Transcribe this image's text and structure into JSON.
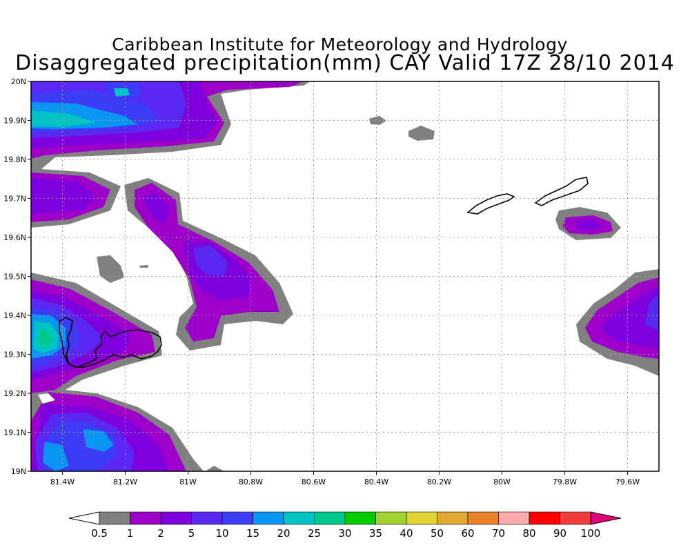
{
  "title": {
    "line1": "Caribbean Institute for Meteorology and Hydrology",
    "line2": "Disaggregated precipitation(mm) CAY Valid 17Z 28/10 2014"
  },
  "map": {
    "lon_range": [
      -81.5,
      -79.5
    ],
    "lat_range": [
      19.0,
      20.0
    ],
    "grid": "dotted",
    "lon_ticks": [
      {
        "value": -81.4,
        "label": "81.4W"
      },
      {
        "value": -81.2,
        "label": "81.2W"
      },
      {
        "value": -81.0,
        "label": "81W"
      },
      {
        "value": -80.8,
        "label": "80.8W"
      },
      {
        "value": -80.6,
        "label": "80.6W"
      },
      {
        "value": -80.4,
        "label": "80.4W"
      },
      {
        "value": -80.2,
        "label": "80.2W"
      },
      {
        "value": -80.0,
        "label": "80W"
      },
      {
        "value": -79.8,
        "label": "79.8W"
      },
      {
        "value": -79.6,
        "label": "79.6W"
      }
    ],
    "lat_ticks": [
      {
        "value": 20.0,
        "label": "20N"
      },
      {
        "value": 19.9,
        "label": "19.9N"
      },
      {
        "value": 19.8,
        "label": "19.8N"
      },
      {
        "value": 19.7,
        "label": "19.7N"
      },
      {
        "value": 19.6,
        "label": "19.6N"
      },
      {
        "value": 19.5,
        "label": "19.5N"
      },
      {
        "value": 19.4,
        "label": "19.4N"
      },
      {
        "value": 19.3,
        "label": "19.3N"
      },
      {
        "value": 19.2,
        "label": "19.2N"
      },
      {
        "value": 19.1,
        "label": "19.1N"
      },
      {
        "value": 19.0,
        "label": "19N"
      }
    ]
  },
  "colorbar": {
    "low_color": "#ffffff",
    "high_color": "#e0007a",
    "colors": [
      "#808080",
      "#9d00c8",
      "#7e00dc",
      "#5a28f0",
      "#3c3cf5",
      "#0a96f0",
      "#00c3c3",
      "#00c88c",
      "#00cd00",
      "#a0d232",
      "#e1d232",
      "#e1aa32",
      "#eb8228",
      "#ffaaaa",
      "#ff0000",
      "#f03c3c"
    ],
    "labels": [
      "0.5",
      "1",
      "2",
      "5",
      "10",
      "15",
      "20",
      "25",
      "30",
      "35",
      "40",
      "50",
      "60",
      "70",
      "80",
      "90",
      "100"
    ]
  },
  "colors": {
    "precip_0_5": "#808080",
    "precip_1": "#9d00c8",
    "precip_2": "#7e00dc",
    "precip_5": "#5a28f0",
    "precip_10": "#3c3cf5",
    "precip_15": "#0a96f0",
    "precip_20": "#00c3c3",
    "precip_25": "#00c88c",
    "land_outline": "#000000"
  },
  "islands": [
    "grand-cayman",
    "little-cayman",
    "cayman-brac"
  ]
}
